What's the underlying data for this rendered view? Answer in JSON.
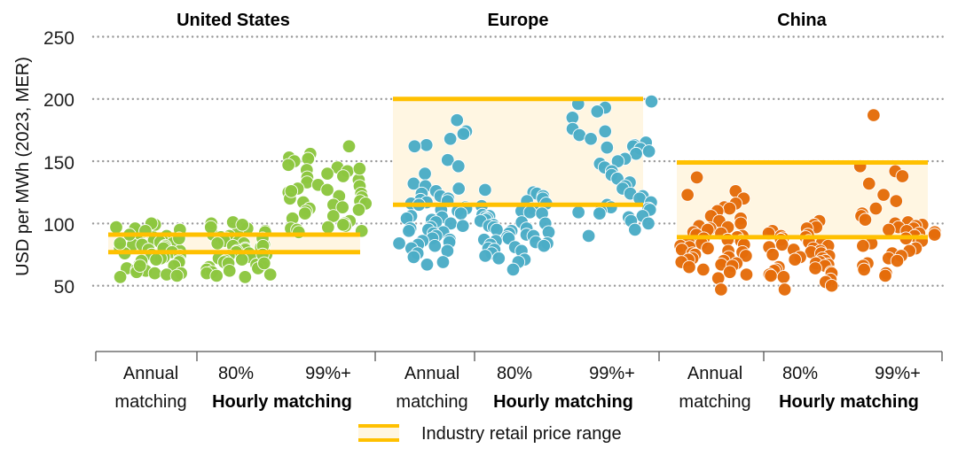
{
  "chart_data": {
    "type": "scatter",
    "ylabel": "USD per MWh (2023, MER)",
    "ylim": [
      0,
      250
    ],
    "yticks": [
      "50",
      "100",
      "150",
      "200",
      "250"
    ],
    "grid": true,
    "category_line1": [
      "Annual",
      "80%",
      "99%+"
    ],
    "category_line2_annual": "matching",
    "category_group_label": "Hourly matching",
    "legend": {
      "label": "Industry retail price range",
      "placement": "bottom"
    },
    "colors": {
      "band_line": "#FFC000",
      "band_fill": "#FFF6E2",
      "grid": "#999999"
    },
    "panels": [
      {
        "title": "United States",
        "color": "#8CC63F",
        "band": [
          77,
          91
        ],
        "groups": [
          {
            "category": "Annual matching",
            "values": [
              97,
              95,
              93,
              92,
              90,
              89,
              88,
              87,
              86,
              86,
              85,
              85,
              84,
              83,
              83,
              82,
              81,
              80,
              80,
              79,
              78,
              77,
              76,
              75,
              74,
              73,
              72,
              71,
              70,
              69,
              68,
              67,
              66,
              65,
              64,
              63,
              62,
              61,
              60,
              60,
              59,
              58,
              57,
              96,
              99,
              100,
              94,
              91,
              88,
              84,
              70,
              66
            ]
          },
          {
            "category": "80% Hourly matching",
            "values": [
              96,
              94,
              92,
              91,
              90,
              89,
              88,
              87,
              86,
              85,
              84,
              84,
              83,
              82,
              81,
              80,
              79,
              78,
              77,
              76,
              75,
              74,
              73,
              72,
              71,
              70,
              69,
              68,
              67,
              66,
              65,
              64,
              63,
              62,
              61,
              60,
              59,
              58,
              57,
              100,
              101,
              99,
              97,
              93,
              88,
              82,
              75,
              68
            ]
          },
          {
            "category": "99%+ Hourly matching",
            "values": [
              162,
              156,
              153,
              152,
              150,
              147,
              145,
              143,
              142,
              140,
              138,
              137,
              135,
              133,
              131,
              130,
              128,
              127,
              125,
              124,
              122,
              121,
              120,
              118,
              117,
              116,
              115,
              113,
              112,
              110,
              108,
              106,
              104,
              102,
              100,
              98,
              97,
              96,
              95,
              94,
              93,
              99,
              144,
              126,
              111
            ]
          }
        ]
      },
      {
        "title": "Europe",
        "color": "#4BACC6",
        "band": [
          115,
          200
        ],
        "groups": [
          {
            "category": "Annual matching",
            "values": [
              183,
              174,
              172,
              168,
              163,
              162,
              151,
              146,
              140,
              132,
              130,
              128,
              126,
              124,
              122,
              120,
              119,
              118,
              117,
              116,
              115,
              113,
              112,
              111,
              110,
              108,
              106,
              105,
              104,
              103,
              101,
              100,
              98,
              97,
              96,
              95,
              94,
              93,
              92,
              90,
              88,
              87,
              86,
              85,
              84,
              83,
              82,
              80,
              78,
              76,
              73,
              69,
              67
            ]
          },
          {
            "category": "80% Hourly matching",
            "values": [
              127,
              125,
              124,
              122,
              120,
              118,
              116,
              114,
              112,
              110,
              109,
              108,
              107,
              106,
              105,
              104,
              103,
              102,
              101,
              100,
              99,
              98,
              97,
              96,
              95,
              94,
              93,
              92,
              91,
              90,
              89,
              88,
              87,
              86,
              85,
              84,
              83,
              82,
              81,
              80,
              79,
              78,
              76,
              74,
              72,
              71,
              69,
              63
            ]
          },
          {
            "category": "99%+ Hourly matching",
            "values": [
              198,
              196,
              193,
              190,
              185,
              176,
              174,
              171,
              168,
              165,
              163,
              162,
              161,
              160,
              158,
              156,
              152,
              150,
              148,
              145,
              142,
              139,
              136,
              133,
              130,
              128,
              124,
              122,
              120,
              117,
              115,
              113,
              112,
              111,
              110,
              109,
              108,
              106,
              105,
              102,
              100,
              95,
              90
            ]
          }
        ]
      },
      {
        "title": "China",
        "color": "#E46C0A",
        "band": [
          89,
          149
        ],
        "groups": [
          {
            "category": "Annual matching",
            "values": [
              137,
              126,
              123,
              120,
              116,
              113,
              112,
              110,
              106,
              104,
              102,
              100,
              98,
              97,
              96,
              95,
              93,
              92,
              91,
              90,
              89,
              88,
              87,
              86,
              85,
              84,
              83,
              82,
              81,
              80,
              79,
              78,
              77,
              76,
              75,
              74,
              73,
              72,
              71,
              70,
              69,
              68,
              67,
              66,
              65,
              63,
              61,
              59,
              56,
              47
            ]
          },
          {
            "category": "80% Hourly matching",
            "values": [
              102,
              99,
              97,
              96,
              94,
              92,
              91,
              90,
              89,
              88,
              87,
              86,
              85,
              84,
              83,
              82,
              81,
              80,
              79,
              78,
              77,
              76,
              75,
              74,
              73,
              72,
              71,
              70,
              69,
              68,
              67,
              66,
              65,
              64,
              63,
              62,
              61,
              60,
              59,
              58,
              57,
              55,
              53,
              50,
              47
            ]
          },
          {
            "category": "99%+ Hourly matching",
            "values": [
              187,
              146,
              142,
              138,
              132,
              123,
              118,
              112,
              108,
              106,
              103,
              101,
              100,
              99,
              98,
              97,
              96,
              95,
              94,
              93,
              92,
              91,
              90,
              88,
              86,
              84,
              82,
              80,
              78,
              76,
              74,
              72,
              70,
              68,
              66,
              63,
              60,
              58
            ]
          }
        ]
      }
    ]
  }
}
